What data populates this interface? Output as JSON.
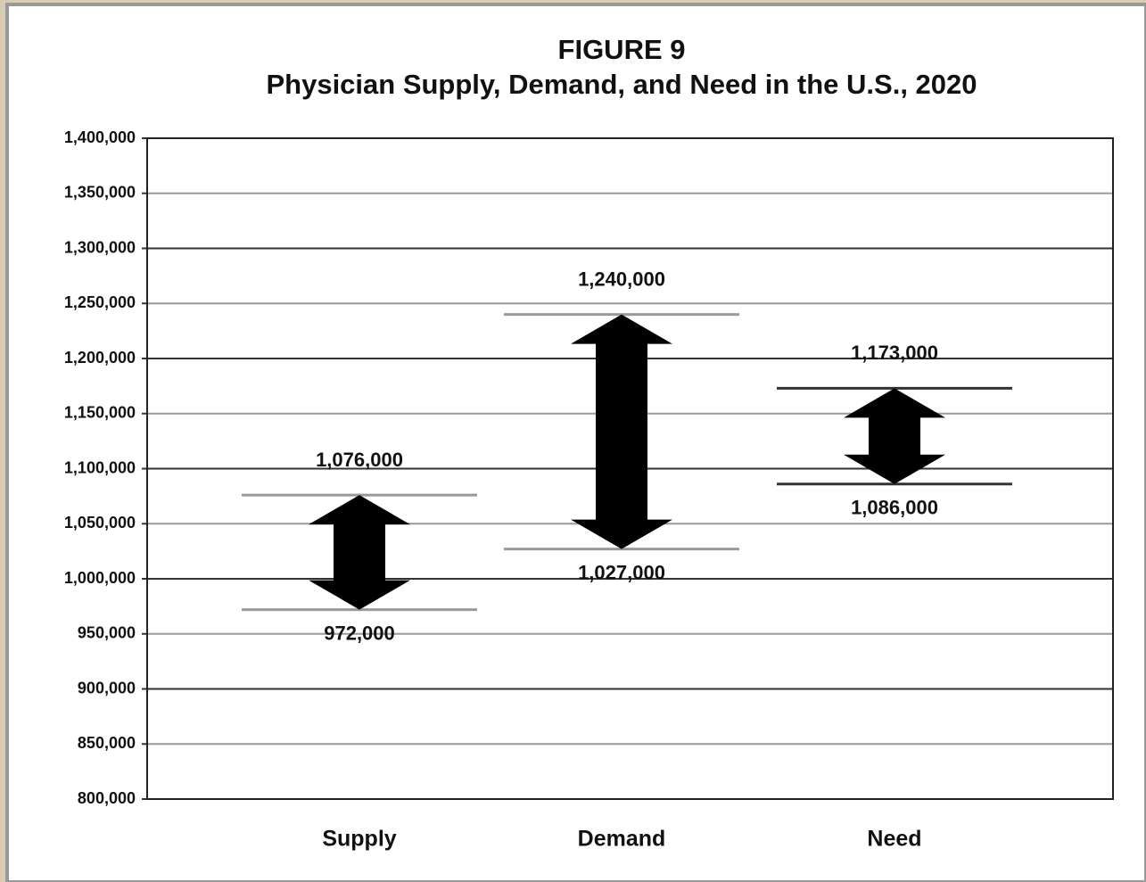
{
  "chart_data": {
    "type": "range-arrow",
    "title": "FIGURE 9",
    "subtitle": "Physician Supply, Demand, and Need in the U.S., 2020",
    "categories": [
      "Supply",
      "Demand",
      "Need"
    ],
    "series": [
      {
        "values": [
          972000,
          1027000,
          1086000
        ],
        "value_labels": [
          "972,000",
          "1,027,000",
          "1,086,000"
        ]
      },
      {
        "values": [
          1076000,
          1240000,
          1173000
        ],
        "value_labels": [
          "1,076,000",
          "1,240,000",
          "1,173,000"
        ]
      }
    ],
    "color": "#000000",
    "line_colors": [
      "#999999",
      "#999999",
      "#333333"
    ],
    "ylim": [
      800000,
      1400000
    ],
    "yticks": [
      {
        "value": 800000,
        "label": "800,000"
      },
      {
        "value": 850000,
        "label": "850,000"
      },
      {
        "value": 900000,
        "label": "900,000"
      },
      {
        "value": 950000,
        "label": "950,000"
      },
      {
        "value": 1000000,
        "label": "1,000,000"
      },
      {
        "value": 1050000,
        "label": "1,050,000"
      },
      {
        "value": 1100000,
        "label": "1,100,000"
      },
      {
        "value": 1150000,
        "label": "1,150,000"
      },
      {
        "value": 1200000,
        "label": "1,200,000"
      },
      {
        "value": 1250000,
        "label": "1,250,000"
      },
      {
        "value": 1300000,
        "label": "1,300,000"
      },
      {
        "value": 1350000,
        "label": "1,350,000"
      },
      {
        "value": 1400000,
        "label": "1,400,000"
      }
    ],
    "grid": true
  }
}
